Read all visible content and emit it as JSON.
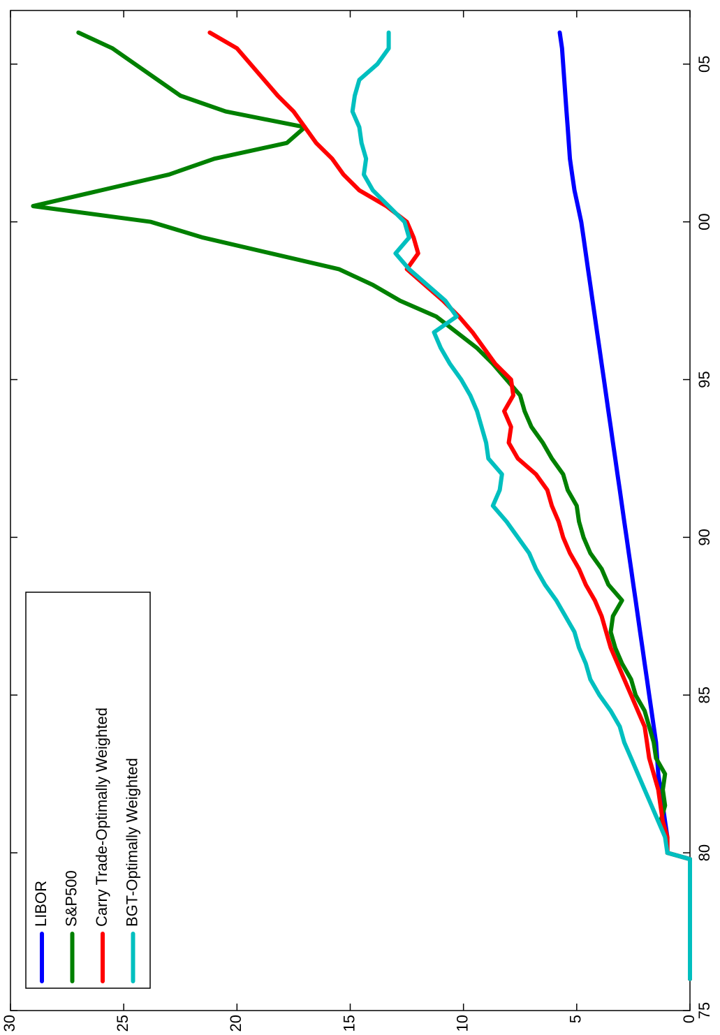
{
  "chart_data": {
    "type": "line",
    "x": [
      76,
      79.8,
      80,
      80.5,
      81,
      81.5,
      82,
      82.5,
      83,
      83.5,
      84,
      84.5,
      85,
      85.5,
      86,
      86.5,
      87,
      87.5,
      88,
      88.5,
      89,
      89.5,
      90,
      90.5,
      91,
      91.5,
      92,
      92.5,
      93,
      93.5,
      94,
      94.5,
      95,
      95.5,
      96,
      96.5,
      97,
      97.5,
      98,
      98.5,
      99,
      99.5,
      100,
      100.5,
      101,
      101.5,
      102,
      102.5,
      103,
      103.5,
      104,
      104.5,
      105,
      105.5,
      106
    ],
    "series": [
      {
        "name": "LIBOR",
        "color": "#0000ff",
        "values": [
          0,
          0,
          1.0,
          1.0,
          1.1,
          1.2,
          1.3,
          1.4,
          1.45,
          1.5,
          1.6,
          1.7,
          1.8,
          1.9,
          2.0,
          2.1,
          2.2,
          2.3,
          2.4,
          2.5,
          2.6,
          2.7,
          2.8,
          2.9,
          3.0,
          3.1,
          3.2,
          3.3,
          3.4,
          3.5,
          3.6,
          3.7,
          3.8,
          3.9,
          4.0,
          4.1,
          4.2,
          4.3,
          4.4,
          4.5,
          4.6,
          4.7,
          4.8,
          4.95,
          5.1,
          5.2,
          5.3,
          5.35,
          5.4,
          5.45,
          5.5,
          5.55,
          5.6,
          5.65,
          5.75
        ]
      },
      {
        "name": "S&P500",
        "color": "#008000",
        "values": [
          0,
          0,
          1.0,
          1.0,
          1.3,
          1.1,
          1.2,
          1.1,
          1.5,
          1.6,
          1.8,
          2.0,
          2.4,
          2.6,
          3.0,
          3.3,
          3.5,
          3.4,
          3.0,
          3.6,
          3.9,
          4.4,
          4.7,
          4.9,
          5.0,
          5.4,
          5.6,
          6.1,
          6.5,
          7.0,
          7.3,
          7.5,
          8.1,
          8.7,
          9.4,
          10.3,
          11.2,
          12.8,
          14.0,
          15.5,
          18.5,
          21.5,
          23.8,
          29.0,
          26.0,
          23.0,
          21.0,
          17.8,
          17.0,
          20.5,
          22.5,
          23.5,
          24.5,
          25.5,
          27.0
        ]
      },
      {
        "name": "Carry Trade-Optimally Weighted",
        "color": "#ff0000",
        "values": [
          0,
          0,
          1.0,
          1.0,
          1.2,
          1.3,
          1.4,
          1.6,
          1.8,
          1.9,
          2.0,
          2.3,
          2.6,
          2.9,
          3.2,
          3.5,
          3.7,
          3.9,
          4.2,
          4.6,
          4.9,
          5.3,
          5.6,
          5.8,
          6.1,
          6.3,
          6.8,
          7.6,
          8.0,
          7.9,
          8.2,
          7.8,
          7.9,
          8.6,
          9.1,
          9.6,
          10.2,
          10.9,
          11.7,
          12.5,
          12.0,
          12.2,
          12.5,
          13.4,
          14.6,
          15.3,
          15.8,
          16.5,
          17.0,
          17.5,
          18.2,
          18.8,
          19.4,
          20.0,
          21.2
        ]
      },
      {
        "name": "BGT-Optimally Weighted",
        "color": "#00bfbf",
        "values": [
          0,
          0,
          1.0,
          1.1,
          1.4,
          1.7,
          2.0,
          2.3,
          2.6,
          2.9,
          3.1,
          3.5,
          4.0,
          4.4,
          4.6,
          4.9,
          5.1,
          5.5,
          5.9,
          6.4,
          6.8,
          7.1,
          7.6,
          8.1,
          8.7,
          8.4,
          8.3,
          8.9,
          9.0,
          9.2,
          9.4,
          9.7,
          10.1,
          10.6,
          11.0,
          11.3,
          10.3,
          10.8,
          11.6,
          12.4,
          13.0,
          12.4,
          12.6,
          13.3,
          14.0,
          14.4,
          14.3,
          14.5,
          14.6,
          14.9,
          14.8,
          14.6,
          13.8,
          13.3,
          13.3
        ]
      }
    ],
    "xlim": [
      75,
      106.7
    ],
    "xticks": [
      75,
      80,
      85,
      90,
      95,
      {
        "value": 100,
        "label": "00"
      },
      {
        "value": 105,
        "label": "05"
      }
    ],
    "ylim": [
      0,
      30
    ],
    "yticks": [
      0,
      5,
      10,
      15,
      20,
      25,
      30
    ],
    "grid": false,
    "legend": "upper left",
    "rotation": -90
  }
}
